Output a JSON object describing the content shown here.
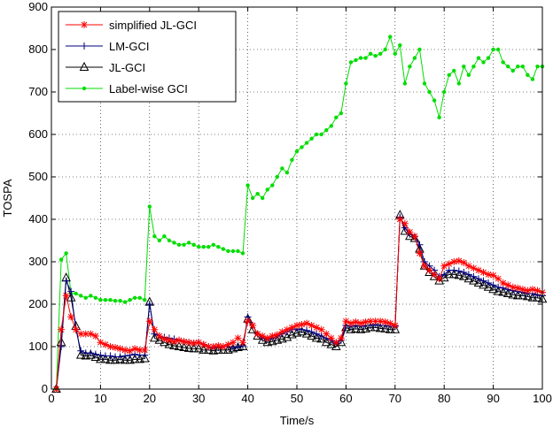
{
  "chart_data": {
    "type": "line",
    "title": "",
    "xlabel": "Time/s",
    "ylabel": "TOSPA",
    "xlim": [
      0,
      100
    ],
    "ylim": [
      0,
      900
    ],
    "xticks": [
      0,
      10,
      20,
      30,
      40,
      50,
      60,
      70,
      80,
      90,
      100
    ],
    "yticks": [
      0,
      100,
      200,
      300,
      400,
      500,
      600,
      700,
      800,
      900
    ],
    "grid": true,
    "legend_position": "top-left",
    "x": [
      1,
      2,
      3,
      4,
      5,
      6,
      7,
      8,
      9,
      10,
      11,
      12,
      13,
      14,
      15,
      16,
      17,
      18,
      19,
      20,
      21,
      22,
      23,
      24,
      25,
      26,
      27,
      28,
      29,
      30,
      31,
      32,
      33,
      34,
      35,
      36,
      37,
      38,
      39,
      40,
      41,
      42,
      43,
      44,
      45,
      46,
      47,
      48,
      49,
      50,
      51,
      52,
      53,
      54,
      55,
      56,
      57,
      58,
      59,
      60,
      61,
      62,
      63,
      64,
      65,
      66,
      67,
      68,
      69,
      70,
      71,
      72,
      73,
      74,
      75,
      76,
      77,
      78,
      79,
      80,
      81,
      82,
      83,
      84,
      85,
      86,
      87,
      88,
      89,
      90,
      91,
      92,
      93,
      94,
      95,
      96,
      97,
      98,
      99,
      100
    ],
    "series": [
      {
        "name": "simplified JL-GCI",
        "color": "#ff0000",
        "marker": "star",
        "values": [
          0,
          140,
          220,
          170,
          140,
          130,
          130,
          130,
          125,
          110,
          105,
          100,
          98,
          95,
          92,
          90,
          95,
          92,
          92,
          160,
          140,
          125,
          118,
          115,
          112,
          115,
          112,
          110,
          108,
          110,
          105,
          100,
          100,
          102,
          100,
          105,
          110,
          120,
          110,
          160,
          150,
          130,
          125,
          120,
          125,
          128,
          135,
          140,
          145,
          150,
          152,
          155,
          150,
          145,
          140,
          130,
          120,
          110,
          120,
          160,
          155,
          158,
          155,
          158,
          160,
          160,
          160,
          158,
          155,
          150,
          400,
          390,
          370,
          360,
          320,
          290,
          280,
          270,
          260,
          290,
          295,
          300,
          302,
          298,
          290,
          285,
          280,
          275,
          270,
          268,
          260,
          250,
          245,
          240,
          238,
          235,
          232,
          235,
          232,
          228
        ]
      },
      {
        "name": "LM-GCI",
        "color": "#000080",
        "marker": "plus",
        "values": [
          0,
          100,
          255,
          230,
          140,
          90,
          85,
          85,
          82,
          80,
          78,
          78,
          76,
          76,
          78,
          80,
          82,
          80,
          80,
          200,
          130,
          125,
          122,
          120,
          118,
          115,
          112,
          110,
          108,
          110,
          105,
          100,
          98,
          98,
          100,
          100,
          98,
          100,
          102,
          170,
          150,
          130,
          120,
          118,
          120,
          125,
          130,
          135,
          140,
          142,
          140,
          138,
          135,
          130,
          125,
          120,
          115,
          108,
          115,
          150,
          148,
          150,
          148,
          150,
          150,
          152,
          150,
          150,
          148,
          148,
          405,
          380,
          365,
          360,
          340,
          300,
          290,
          280,
          265,
          270,
          280,
          280,
          278,
          275,
          270,
          265,
          260,
          255,
          250,
          245,
          240,
          238,
          235,
          232,
          230,
          228,
          225,
          225,
          222,
          220
        ]
      },
      {
        "name": "JL-GCI",
        "color": "#000000",
        "marker": "triangle",
        "values": [
          0,
          110,
          262,
          215,
          148,
          80,
          78,
          80,
          75,
          70,
          70,
          68,
          68,
          70,
          68,
          68,
          70,
          70,
          72,
          205,
          120,
          115,
          110,
          105,
          102,
          100,
          98,
          96,
          95,
          95,
          92,
          92,
          90,
          92,
          92,
          92,
          95,
          98,
          100,
          165,
          140,
          125,
          115,
          110,
          112,
          115,
          118,
          122,
          128,
          132,
          135,
          130,
          125,
          120,
          118,
          110,
          105,
          100,
          110,
          145,
          140,
          142,
          140,
          142,
          145,
          145,
          143,
          142,
          140,
          140,
          410,
          372,
          360,
          355,
          330,
          290,
          275,
          265,
          255,
          262,
          270,
          270,
          268,
          265,
          260,
          255,
          250,
          245,
          240,
          235,
          230,
          228,
          225,
          222,
          220,
          220,
          218,
          215,
          215,
          212
        ]
      },
      {
        "name": "Label-wise GCI",
        "color": "#00dd00",
        "marker": "dot",
        "values": [
          0,
          305,
          320,
          225,
          225,
          220,
          215,
          220,
          215,
          210,
          210,
          210,
          208,
          208,
          205,
          210,
          215,
          215,
          210,
          430,
          360,
          350,
          360,
          350,
          345,
          340,
          340,
          345,
          340,
          335,
          335,
          335,
          340,
          335,
          330,
          325,
          325,
          325,
          320,
          480,
          450,
          460,
          450,
          470,
          480,
          500,
          520,
          510,
          540,
          560,
          570,
          580,
          590,
          600,
          600,
          610,
          620,
          640,
          650,
          720,
          770,
          775,
          780,
          780,
          790,
          785,
          790,
          800,
          830,
          790,
          810,
          720,
          760,
          780,
          800,
          720,
          700,
          680,
          640,
          700,
          740,
          750,
          720,
          760,
          740,
          760,
          780,
          770,
          780,
          800,
          800,
          770,
          760,
          750,
          760,
          760,
          740,
          730,
          760,
          760
        ]
      }
    ]
  }
}
